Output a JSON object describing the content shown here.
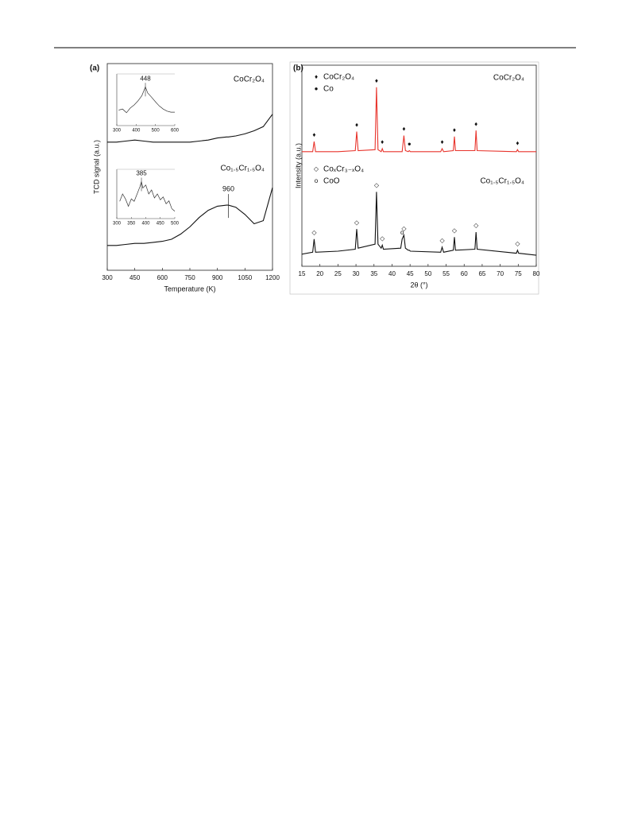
{
  "chart_data": [
    {
      "type": "line",
      "panel_label": "(a)",
      "y_label": "TCD signal (a.u.)",
      "x_label": "Temperature (K)",
      "xlim": [
        300,
        1200
      ],
      "xticks": [
        300,
        450,
        600,
        750,
        900,
        1050,
        1200
      ],
      "ylim": [
        0,
        10
      ],
      "x": [
        300,
        350,
        400,
        450,
        500,
        550,
        600,
        650,
        700,
        750,
        800,
        850,
        900,
        950,
        960,
        1000,
        1050,
        1100,
        1150,
        1200
      ],
      "series": [
        {
          "name": "CoCr₂O₄",
          "color": "#111111",
          "values": [
            6.2,
            6.2,
            6.25,
            6.3,
            6.25,
            6.2,
            6.2,
            6.2,
            6.2,
            6.2,
            6.25,
            6.3,
            6.4,
            6.45,
            6.45,
            6.5,
            6.6,
            6.75,
            6.95,
            7.55
          ]
        },
        {
          "name": "Co₁.₅Cr₁.₅O₄",
          "color": "#111111",
          "values": [
            1.2,
            1.2,
            1.25,
            1.3,
            1.3,
            1.35,
            1.4,
            1.5,
            1.75,
            2.1,
            2.55,
            2.9,
            3.1,
            3.15,
            3.15,
            3.05,
            2.7,
            2.25,
            2.4,
            4.0
          ]
        }
      ],
      "annotation": {
        "text": "960",
        "x": 960
      },
      "insets": [
        {
          "xlim": [
            300,
            600
          ],
          "xticks": [
            300,
            400,
            500,
            600
          ],
          "ylim": [
            0,
            10
          ],
          "x": [
            310,
            330,
            350,
            370,
            390,
            410,
            430,
            448,
            460,
            480,
            500,
            520,
            540,
            560,
            580,
            600
          ],
          "values": [
            3,
            3.2,
            2.5,
            3.4,
            4,
            4.8,
            5.8,
            7.5,
            6.3,
            5.5,
            4.6,
            3.8,
            3.2,
            2.8,
            2.6,
            2.6
          ],
          "annotation": {
            "text": "448",
            "x": 448
          }
        },
        {
          "xlim": [
            300,
            500
          ],
          "xticks": [
            300,
            350,
            400,
            450,
            500
          ],
          "ylim": [
            0,
            10
          ],
          "x": [
            310,
            320,
            330,
            340,
            350,
            360,
            370,
            380,
            385,
            390,
            400,
            410,
            420,
            430,
            440,
            450,
            460,
            470,
            480,
            490,
            500
          ],
          "values": [
            3.5,
            5,
            4,
            2.5,
            4,
            3.5,
            5,
            6.5,
            7.5,
            6.2,
            6.8,
            5,
            5.8,
            4.2,
            5,
            3.8,
            4.4,
            3,
            3.6,
            2,
            1.5
          ],
          "annotation": {
            "text": "385",
            "x": 385
          }
        }
      ]
    },
    {
      "type": "line",
      "panel_label": "(b)",
      "y_label": "Intensity (a.u.)",
      "x_label": "2θ (°)",
      "xlim": [
        15,
        80
      ],
      "xticks": [
        15,
        20,
        25,
        30,
        35,
        40,
        45,
        50,
        55,
        60,
        65,
        70,
        75,
        80
      ],
      "ylim": [
        0,
        10
      ],
      "x": [
        15,
        18,
        18.4,
        18.8,
        25,
        29.8,
        30.2,
        30.6,
        35.3,
        35.7,
        36.1,
        37,
        37.3,
        37.6,
        42.4,
        42.8,
        43.3,
        43.7,
        44.5,
        44.8,
        45.1,
        53.5,
        53.9,
        54.3,
        57,
        57.3,
        57.6,
        63,
        63.3,
        63.6,
        74.5,
        74.8,
        75.1,
        80
      ],
      "series": [
        {
          "name": "CoCr₂O₄",
          "color": "#e8342c",
          "values": [
            5.7,
            5.7,
            6.2,
            5.7,
            5.7,
            5.75,
            6.7,
            5.75,
            5.8,
            8.9,
            5.8,
            5.7,
            5.85,
            5.7,
            5.7,
            5.7,
            6.5,
            5.75,
            5.7,
            5.75,
            5.7,
            5.7,
            5.85,
            5.7,
            5.75,
            6.45,
            5.75,
            5.75,
            6.75,
            5.75,
            5.7,
            5.8,
            5.7,
            5.7
          ],
          "markers": [
            {
              "x": 18.4,
              "symbol": "♦"
            },
            {
              "x": 30.2,
              "symbol": "♦"
            },
            {
              "x": 35.7,
              "symbol": "♦"
            },
            {
              "x": 37.3,
              "symbol": "♦"
            },
            {
              "x": 43.3,
              "symbol": "♦"
            },
            {
              "x": 44.8,
              "symbol": "●"
            },
            {
              "x": 53.9,
              "symbol": "♦"
            },
            {
              "x": 57.3,
              "symbol": "♦"
            },
            {
              "x": 63.3,
              "symbol": "♦"
            },
            {
              "x": 74.8,
              "symbol": "♦"
            }
          ]
        },
        {
          "name": "Co₁.₅Cr₁.₅O₄",
          "color": "#111111",
          "values": [
            0.6,
            0.7,
            1.35,
            0.7,
            0.75,
            0.85,
            1.85,
            0.9,
            1.1,
            3.7,
            1.1,
            0.9,
            1.05,
            0.85,
            0.9,
            1.35,
            1.55,
            0.9,
            0.8,
            0.8,
            0.75,
            0.7,
            0.95,
            0.7,
            0.8,
            1.45,
            0.8,
            0.85,
            1.7,
            0.85,
            0.65,
            0.8,
            0.65,
            0.55
          ],
          "markers": [
            {
              "x": 18.4,
              "symbol": "◇"
            },
            {
              "x": 30.2,
              "symbol": "◇"
            },
            {
              "x": 35.7,
              "symbol": "◇"
            },
            {
              "x": 37.3,
              "symbol": "◇"
            },
            {
              "x": 42.8,
              "symbol": "o"
            },
            {
              "x": 43.3,
              "symbol": "◇"
            },
            {
              "x": 53.9,
              "symbol": "◇"
            },
            {
              "x": 57.3,
              "symbol": "◇"
            },
            {
              "x": 63.3,
              "symbol": "◇"
            },
            {
              "x": 74.8,
              "symbol": "◇"
            }
          ]
        }
      ],
      "legend": [
        {
          "symbol": "♦",
          "text": "CoCr₂O₄"
        },
        {
          "symbol": "●",
          "text": "Co"
        },
        {
          "symbol": "◇",
          "text": "CoₓCr₃₋ₓO₄"
        },
        {
          "symbol": "o",
          "text": "CoO"
        }
      ]
    }
  ]
}
